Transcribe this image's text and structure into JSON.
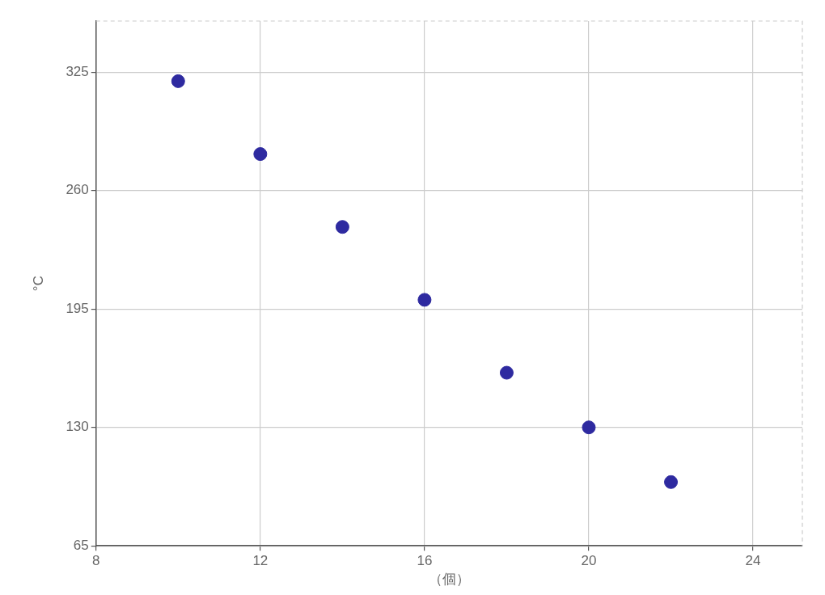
{
  "chart_data": {
    "type": "scatter",
    "xlabel": "（個）",
    "ylabel": "°C",
    "x": [
      10,
      12,
      14,
      16,
      18,
      20,
      22
    ],
    "series": [
      {
        "color": "#2e2aa0",
        "values": [
          320,
          280,
          240,
          200,
          160,
          130,
          100
        ]
      }
    ],
    "xlim": [
      8,
      25.2
    ],
    "xticks": [
      8,
      12,
      16,
      20,
      24
    ],
    "ylim": [
      65,
      353
    ],
    "yticks": [
      65,
      130,
      195,
      260,
      325
    ],
    "grid": true,
    "legend": false,
    "marker": "circle"
  }
}
